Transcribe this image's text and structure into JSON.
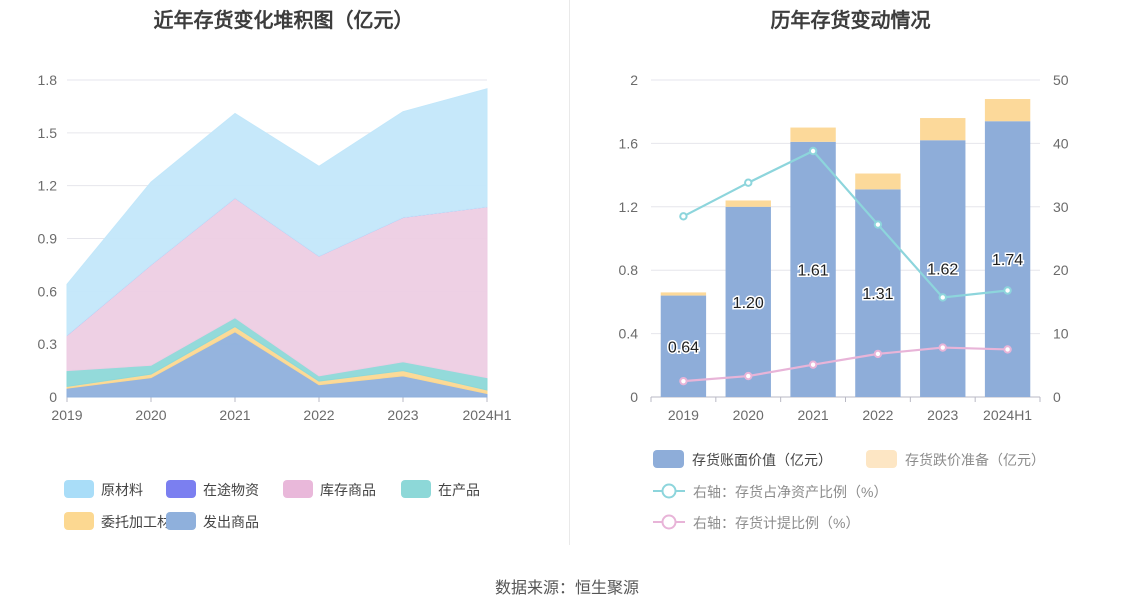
{
  "left_chart_title": "近年存货变化堆积图（亿元）",
  "right_chart_title": "历年存货变动情况",
  "source_text": "数据来源：恒生聚源",
  "chart_data": [
    {
      "type": "area",
      "stacked": true,
      "title": "近年存货变化堆积图（亿元）",
      "categories": [
        "2019",
        "2020",
        "2021",
        "2022",
        "2023",
        "2024H1"
      ],
      "ylim": [
        0,
        1.8
      ],
      "yticks": [
        "0",
        "0.3",
        "0.6",
        "0.9",
        "1.2",
        "1.5",
        "1.8"
      ],
      "ytick_values": [
        0,
        0.3,
        0.6,
        0.9,
        1.2,
        1.5,
        1.8
      ],
      "series": [
        {
          "name": "发出商品",
          "color": "#8fb0dc",
          "values": [
            0.05,
            0.11,
            0.37,
            0.07,
            0.12,
            0.02
          ]
        },
        {
          "name": "委托加工材料",
          "color": "#fcd891",
          "values": [
            0.01,
            0.02,
            0.03,
            0.02,
            0.03,
            0.02
          ]
        },
        {
          "name": "在产品",
          "color": "#8dd8d8",
          "values": [
            0.09,
            0.05,
            0.05,
            0.03,
            0.05,
            0.07
          ]
        },
        {
          "name": "库存商品",
          "color": "#edcde3",
          "values": [
            0.2,
            0.57,
            0.68,
            0.68,
            0.82,
            0.97
          ]
        },
        {
          "name": "在途物资",
          "color": "#7b7ff0",
          "values": [
            0.0,
            0.0,
            0.0,
            0.0,
            0.0,
            0.0
          ]
        },
        {
          "name": "原材料",
          "color": "#c3e7fa",
          "values": [
            0.29,
            0.47,
            0.48,
            0.51,
            0.6,
            0.67
          ]
        }
      ],
      "legend": [
        {
          "name": "原材料",
          "color": "#a9ddf8"
        },
        {
          "name": "在途物资",
          "color": "#7b7ff0"
        },
        {
          "name": "库存商品",
          "color": "#e9b8da"
        },
        {
          "name": "在产品",
          "color": "#8dd8d8"
        },
        {
          "name": "委托加工材料",
          "color": "#fcd891"
        },
        {
          "name": "发出商品",
          "color": "#8fb0dc"
        }
      ]
    },
    {
      "type": "bar",
      "stacked": true,
      "title": "历年存货变动情况",
      "categories": [
        "2019",
        "2020",
        "2021",
        "2022",
        "2023",
        "2024H1"
      ],
      "ylim": [
        0,
        2
      ],
      "yticks": [
        "0",
        "0.4",
        "0.8",
        "1.2",
        "1.6",
        "2"
      ],
      "ytick_values": [
        0,
        0.4,
        0.8,
        1.2,
        1.6,
        2
      ],
      "y2lim": [
        0,
        50
      ],
      "y2ticks": [
        "0",
        "10",
        "20",
        "30",
        "40",
        "50"
      ],
      "y2tick_values": [
        0,
        10,
        20,
        30,
        40,
        50
      ],
      "series": [
        {
          "name": "存货账面价值（亿元）",
          "kind": "bar",
          "axis": "left",
          "color": "#8eadd9",
          "values": [
            0.64,
            1.2,
            1.61,
            1.31,
            1.62,
            1.74
          ],
          "labels": [
            "0.64",
            "1.20",
            "1.61",
            "1.31",
            "1.62",
            "1.74"
          ]
        },
        {
          "name": "存货跌价准备（亿元）",
          "kind": "bar",
          "axis": "left",
          "color": "#fcd99a",
          "values": [
            0.02,
            0.04,
            0.09,
            0.1,
            0.14,
            0.14
          ]
        },
        {
          "name": "右轴：存货占净资产比例（%）",
          "kind": "line",
          "axis": "right",
          "color": "#8dd5dc",
          "values": [
            28.5,
            33.8,
            38.8,
            27.2,
            15.7,
            16.8
          ]
        },
        {
          "name": "右轴：存货计提比例（%）",
          "kind": "line",
          "axis": "right",
          "color": "#e8b4d8",
          "values": [
            2.5,
            3.3,
            5.1,
            6.8,
            7.8,
            7.5
          ]
        }
      ],
      "legend": [
        {
          "name": "存货账面价值（亿元）",
          "color": "#8eadd9",
          "muted": false
        },
        {
          "name": "存货跌价准备（亿元）",
          "color": "#fde6c4",
          "muted": true
        },
        {
          "name": "右轴：存货占净资产比例（%）",
          "color": "#8dd5dc",
          "muted": true
        },
        {
          "name": "右轴：存货计提比例（%）",
          "color": "#e8b4d8",
          "muted": true
        }
      ]
    }
  ]
}
